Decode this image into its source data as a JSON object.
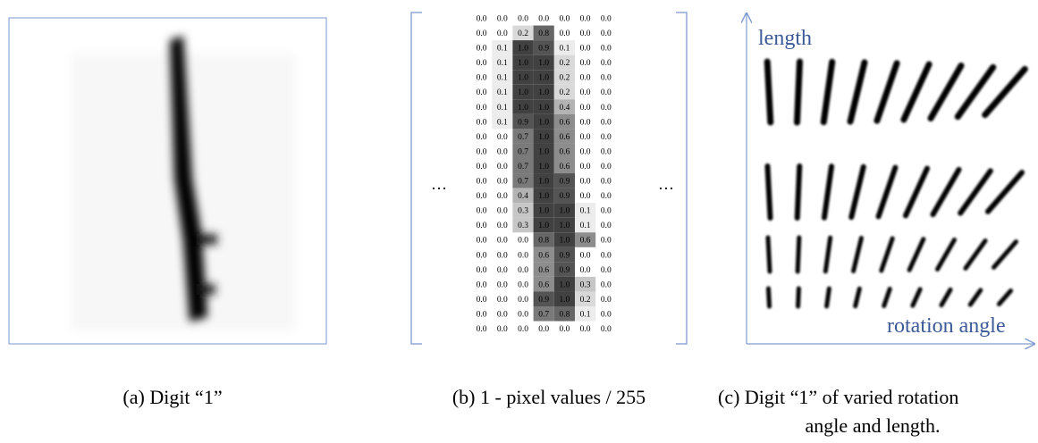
{
  "panel_a": {
    "caption": "(a) Digit “1”"
  },
  "panel_b": {
    "caption": "(b) 1 - pixel values / 255",
    "left_ellipsis": "…",
    "right_ellipsis": "…",
    "matrix": {
      "rows": [
        [
          "0.0",
          "0.0",
          "0.0",
          "0.0",
          "0.0",
          "0.0",
          "0.0"
        ],
        [
          "0.0",
          "0.0",
          "0.2",
          "0.8",
          "0.0",
          "0.0",
          "0.0"
        ],
        [
          "0.0",
          "0.1",
          "1.0",
          "0.9",
          "0.1",
          "0.0",
          "0.0"
        ],
        [
          "0.0",
          "0.1",
          "1.0",
          "1.0",
          "0.2",
          "0.0",
          "0.0"
        ],
        [
          "0.0",
          "0.1",
          "1.0",
          "1.0",
          "0.2",
          "0.0",
          "0.0"
        ],
        [
          "0.0",
          "0.1",
          "1.0",
          "1.0",
          "0.2",
          "0.0",
          "0.0"
        ],
        [
          "0.0",
          "0.1",
          "1.0",
          "1.0",
          "0.4",
          "0.0",
          "0.0"
        ],
        [
          "0.0",
          "0.1",
          "0.9",
          "1.0",
          "0.6",
          "0.0",
          "0.0"
        ],
        [
          "0.0",
          "0.0",
          "0.7",
          "1.0",
          "0.6",
          "0.0",
          "0.0"
        ],
        [
          "0.0",
          "0.0",
          "0.7",
          "1.0",
          "0.6",
          "0.0",
          "0.0"
        ],
        [
          "0.0",
          "0.0",
          "0.7",
          "1.0",
          "0.6",
          "0.0",
          "0.0"
        ],
        [
          "0.0",
          "0.0",
          "0.7",
          "1.0",
          "0.9",
          "0.0",
          "0.0"
        ],
        [
          "0.0",
          "0.0",
          "0.4",
          "1.0",
          "0.9",
          "0.0",
          "0.0"
        ],
        [
          "0.0",
          "0.0",
          "0.3",
          "1.0",
          "1.0",
          "0.1",
          "0.0"
        ],
        [
          "0.0",
          "0.0",
          "0.3",
          "1.0",
          "1.0",
          "0.1",
          "0.0"
        ],
        [
          "0.0",
          "0.0",
          "0.0",
          "0.8",
          "1.0",
          "0.6",
          "0.0"
        ],
        [
          "0.0",
          "0.0",
          "0.0",
          "0.6",
          "0.9",
          "0.0",
          "0.0"
        ],
        [
          "0.0",
          "0.0",
          "0.0",
          "0.6",
          "0.9",
          "0.0",
          "0.0"
        ],
        [
          "0.0",
          "0.0",
          "0.0",
          "0.6",
          "1.0",
          "0.3",
          "0.0"
        ],
        [
          "0.0",
          "0.0",
          "0.0",
          "0.9",
          "1.0",
          "0.2",
          "0.0"
        ],
        [
          "0.0",
          "0.0",
          "0.0",
          "0.7",
          "0.8",
          "0.1",
          "0.0"
        ],
        [
          "0.0",
          "0.0",
          "0.0",
          "0.0",
          "0.0",
          "0.0",
          "0.0"
        ]
      ]
    }
  },
  "panel_c": {
    "y_axis_label": "length",
    "x_axis_label": "rotation angle",
    "caption_lines": [
      "(c) Digit “1” of varied rotation",
      "angle and length."
    ]
  }
}
